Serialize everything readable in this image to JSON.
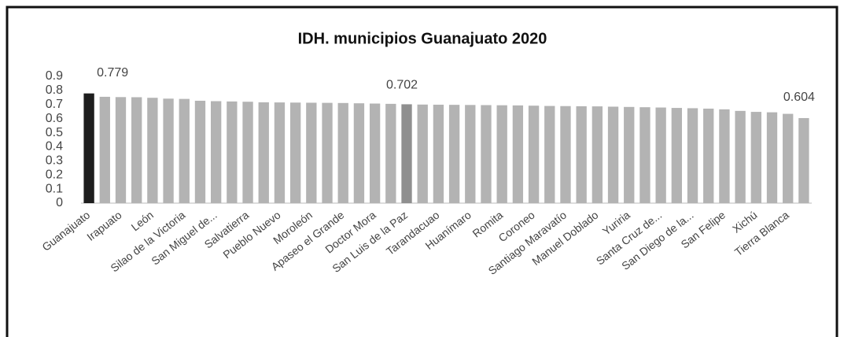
{
  "chart_data": {
    "type": "bar",
    "title": "IDH. municipios Guanajuato 2020",
    "categories": [
      "Guanajuato",
      null,
      "Irapuato",
      null,
      "León",
      null,
      "Silao de la Victoria",
      null,
      "San Miguel de...",
      null,
      "Salvatierra",
      null,
      "Pueblo Nuevo",
      null,
      "Moroleón",
      null,
      "Apaseo el Grande",
      null,
      "Doctor Mora",
      null,
      "San Luis de la Paz",
      null,
      "Tarandacuao",
      null,
      "Huanímaro",
      null,
      "Romita",
      null,
      "Coroneo",
      null,
      "Santiago Maravatío",
      null,
      "Manuel Doblado",
      null,
      "Yuriria",
      null,
      "Santa Cruz de...",
      null,
      "San Diego de la...",
      null,
      "San Felipe",
      null,
      "Xichú",
      null,
      "Tierra Blanca",
      null
    ],
    "values": [
      0.779,
      0.755,
      0.753,
      0.752,
      0.748,
      0.742,
      0.74,
      0.727,
      0.724,
      0.722,
      0.72,
      0.716,
      0.715,
      0.714,
      0.713,
      0.712,
      0.711,
      0.709,
      0.707,
      0.705,
      0.702,
      0.7,
      0.699,
      0.698,
      0.697,
      0.696,
      0.695,
      0.694,
      0.692,
      0.69,
      0.689,
      0.688,
      0.687,
      0.685,
      0.683,
      0.681,
      0.679,
      0.676,
      0.674,
      0.671,
      0.666,
      0.655,
      0.648,
      0.645,
      0.634,
      0.604
    ],
    "value_labels": [
      "0.779",
      null,
      null,
      null,
      null,
      null,
      null,
      null,
      null,
      null,
      null,
      null,
      null,
      null,
      null,
      null,
      null,
      null,
      null,
      null,
      "0.702",
      null,
      null,
      null,
      null,
      null,
      null,
      null,
      null,
      null,
      null,
      null,
      null,
      null,
      null,
      null,
      null,
      null,
      null,
      null,
      null,
      null,
      null,
      null,
      null,
      "0.604"
    ],
    "color": "#b3b3b3",
    "highlight_colors": {
      "0": "#1e1e1e",
      "20": "#8f8f8f"
    },
    "ylim": [
      0,
      0.9
    ],
    "yticks": [
      0,
      0.1,
      0.2,
      0.3,
      0.4,
      0.5,
      0.6,
      0.7,
      0.8,
      0.9
    ],
    "grid": false
  }
}
